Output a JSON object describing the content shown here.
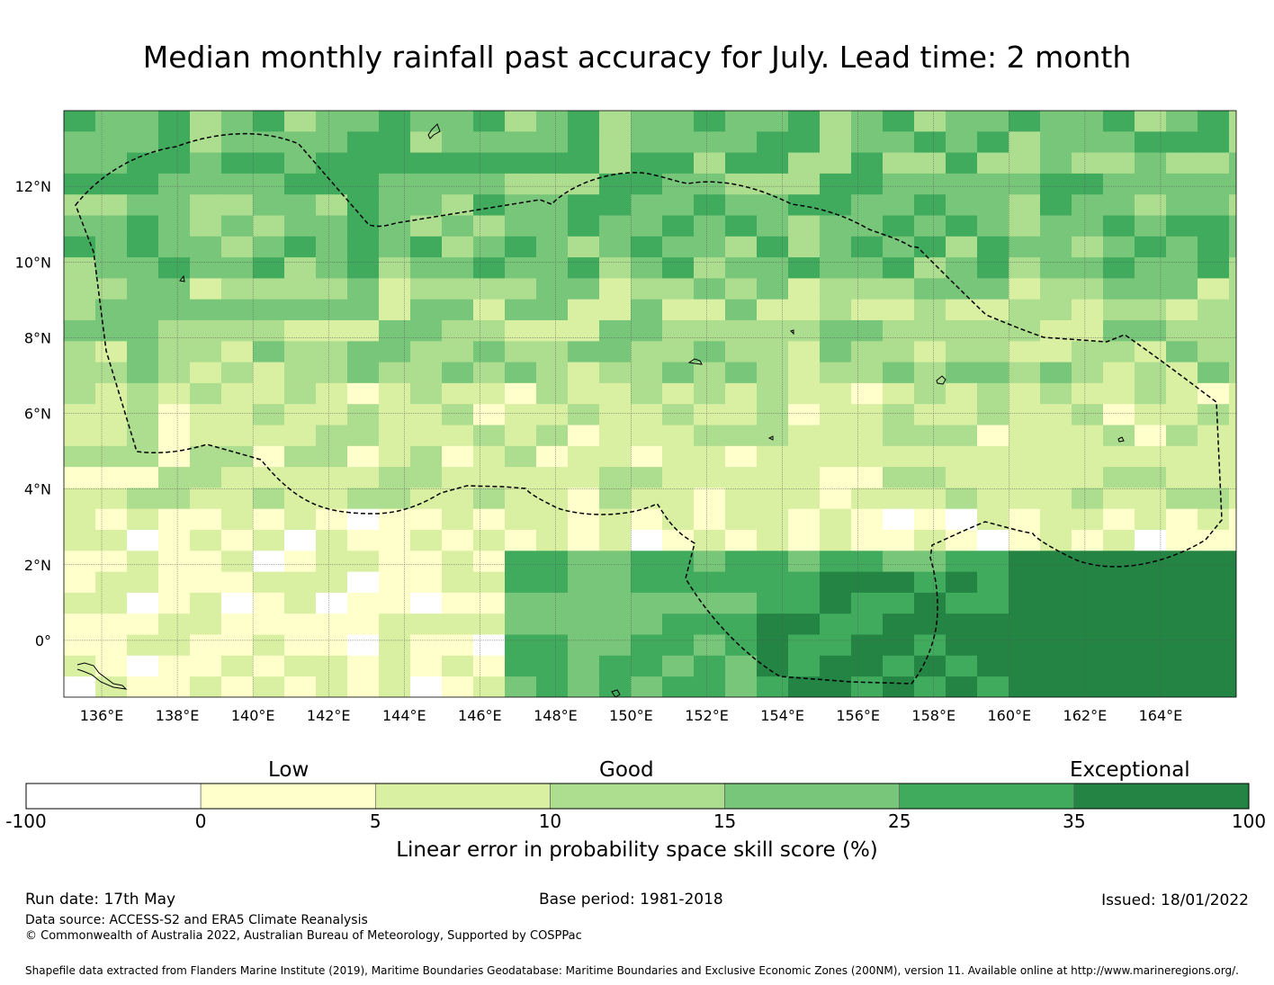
{
  "title": "Median monthly rainfall past accuracy for July. Lead time: 2 month",
  "map": {
    "lon_labels": [
      "136°E",
      "138°E",
      "140°E",
      "142°E",
      "144°E",
      "146°E",
      "148°E",
      "150°E",
      "152°E",
      "154°E",
      "156°E",
      "158°E",
      "160°E",
      "162°E",
      "164°E"
    ],
    "lat_labels": [
      "12°N",
      "10°N",
      "8°N",
      "6°N",
      "4°N",
      "2°N",
      "0°"
    ],
    "lon_range": [
      135,
      166
    ],
    "lat_range": [
      -1.5,
      14
    ]
  },
  "colorbar": {
    "categories": {
      "low": "Low",
      "good": "Good",
      "exceptional": "Exceptional"
    },
    "ticks": [
      "-100",
      "0",
      "5",
      "10",
      "15",
      "25",
      "35",
      "100"
    ],
    "colors": [
      "#ffffff",
      "#ffffcc",
      "#d9f0a3",
      "#addd8e",
      "#78c679",
      "#41ab5d",
      "#238443"
    ],
    "label": "Linear error in probability space skill score (%)"
  },
  "footer": {
    "run_date": "Run date: 17th May",
    "base_period": "Base period: 1981-2018",
    "issued": "Issued: 18/01/2022",
    "data_source": "Data source: ACCESS-S2 and ERA5 Climate Reanalysis",
    "copyright": "© Commonwealth of Australia 2022, Australian Bureau of Meteorology, Supported by COSPPac",
    "shapefile": "Shapefile data extracted from Flanders Marine Institute (2019), Maritime Boundaries Geodatabase: Maritime Boundaries and Exclusive Economic Zones (200NM), version 11. Available online at http://www.marineregions.org/."
  }
}
